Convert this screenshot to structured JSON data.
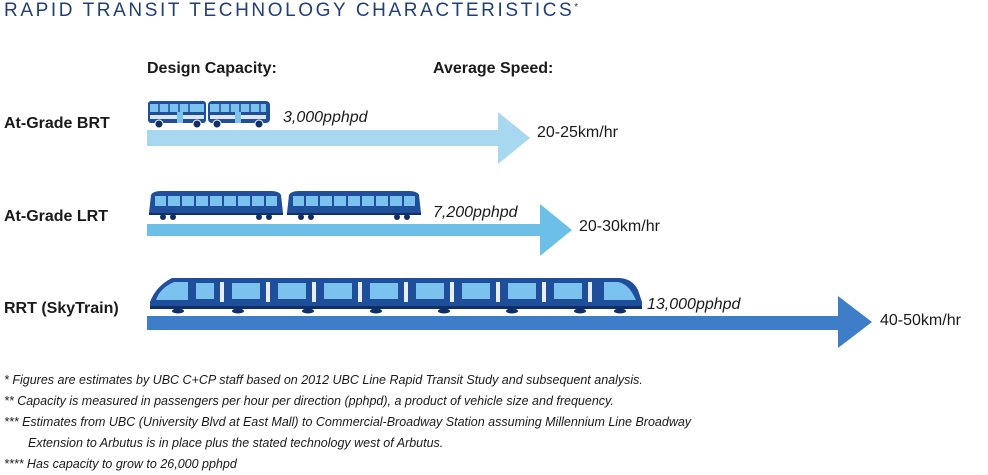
{
  "title": "RAPID TRANSIT TECHNOLOGY CHARACTERISTICS",
  "title_mark": "*",
  "headers": {
    "capacity": "Design Capacity:",
    "speed": "Average Speed:"
  },
  "colors": {
    "brt_arrow": "#a8d8f0",
    "lrt_arrow": "#6cc0e8",
    "rrt_arrow": "#3e7ec9",
    "vehicle_dark": "#1f4f9a",
    "vehicle_window": "#7cc2ee"
  },
  "rows": [
    {
      "label": "At-Grade BRT",
      "capacity": "3,000pphpd",
      "speed": "20-25km/hr",
      "vehicle": "bus-icon"
    },
    {
      "label": "At-Grade LRT",
      "capacity": "7,200pphpd",
      "speed": "20-30km/hr",
      "vehicle": "light-rail-icon"
    },
    {
      "label": "RRT (SkyTrain)",
      "capacity": "13,000pphpd",
      "speed": "40-50km/hr",
      "vehicle": "skytrain-icon"
    }
  ],
  "notes": [
    "* Figures are estimates by UBC C+CP staff based on 2012 UBC Line Rapid Transit Study and subsequent analysis.",
    "** Capacity is measured in passengers per hour per direction (pphpd), a product of vehicle size and frequency.",
    "*** Estimates from UBC (University Blvd at East Mall) to Commercial-Broadway Station assuming Millennium Line Broadway",
    "Extension to Arbutus is in place plus the stated technology west of Arbutus.",
    "**** Has capacity to grow to 26,000 pphpd"
  ]
}
